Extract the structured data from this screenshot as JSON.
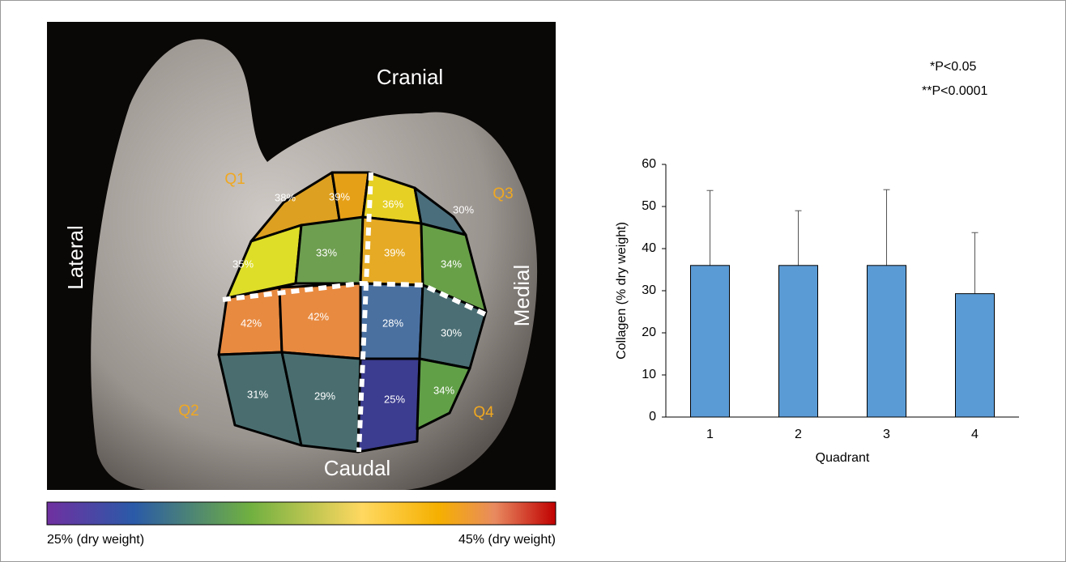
{
  "map": {
    "labels": {
      "cranial": "Cranial",
      "caudal": "Caudal",
      "lateral": "Lateral",
      "medial": "Medial"
    },
    "quadrants": [
      "Q1",
      "Q2",
      "Q3",
      "Q4"
    ],
    "cells": [
      "38%",
      "39%",
      "36%",
      "30%",
      "35%",
      "33%",
      "39%",
      "34%",
      "42%",
      "42%",
      "28%",
      "30%",
      "31%",
      "29%",
      "25%",
      "34%"
    ],
    "colorbar": {
      "min_label": "25% (dry weight)",
      "max_label": "45% (dry weight)"
    }
  },
  "chart_data": {
    "type": "bar",
    "categories": [
      "1",
      "2",
      "3",
      "4"
    ],
    "values": [
      36,
      36,
      36,
      29.3
    ],
    "errors": [
      17.8,
      13,
      18,
      14.5
    ],
    "color": "#5b9bd5",
    "ylim": [
      0,
      60
    ],
    "yticks": [
      0,
      10,
      20,
      30,
      40,
      50,
      60
    ],
    "x_label": "Quadrant",
    "y_label": "Collagen (% dry weight)",
    "annotations": [
      "*P<0.05",
      "**P<0.0001"
    ]
  }
}
